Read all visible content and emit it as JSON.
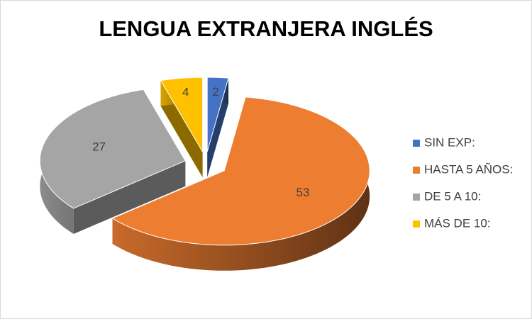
{
  "chart_data": {
    "type": "pie",
    "title": "LENGUA EXTRANJERA INGLÉS",
    "categories": [
      "SIN EXP:",
      "HASTA 5 AÑOS:",
      "DE 5 A 10:",
      "MÁS DE 10:"
    ],
    "values": [
      2,
      53,
      27,
      4
    ],
    "colors": [
      "#4472c4",
      "#ed7d31",
      "#a5a5a5",
      "#ffc000"
    ],
    "legend": "right"
  }
}
